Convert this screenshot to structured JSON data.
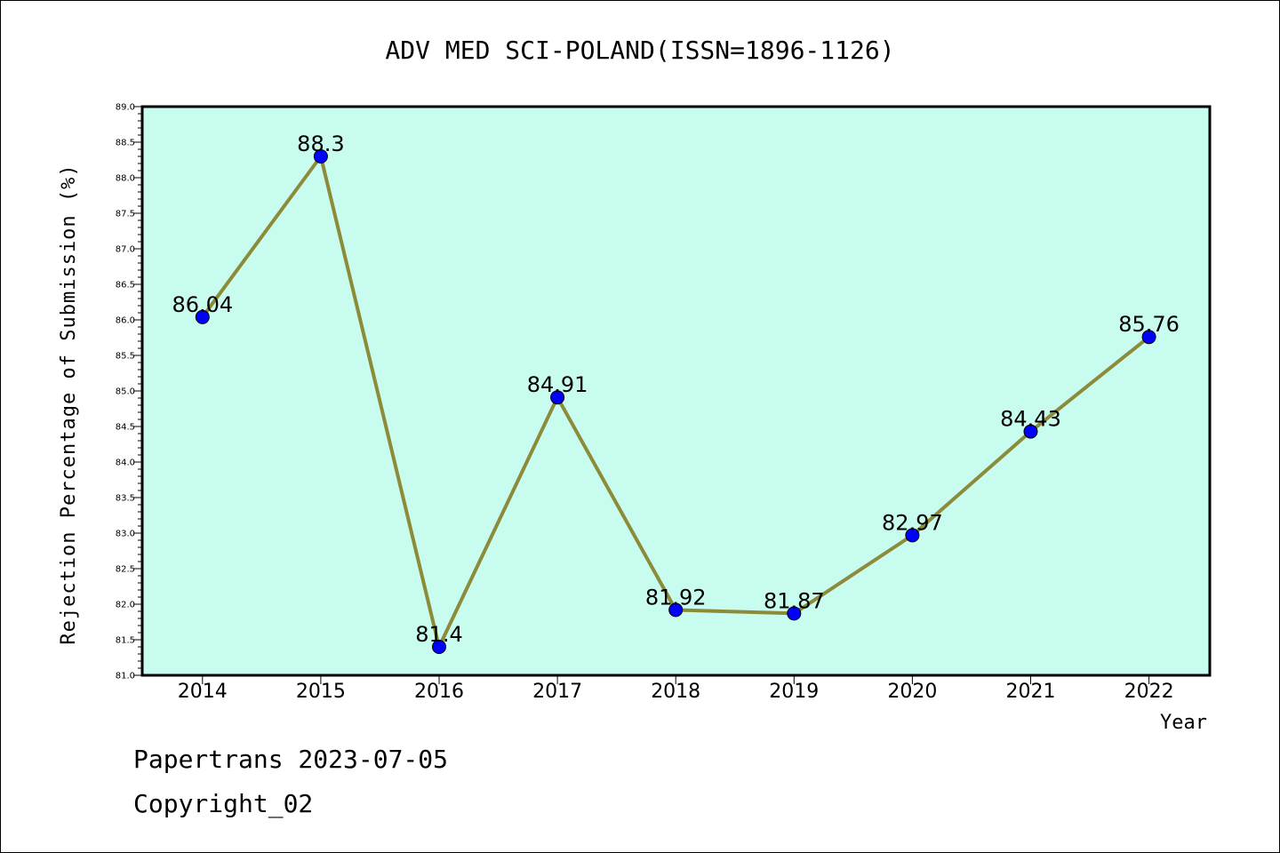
{
  "chart_data": {
    "type": "line",
    "title": "ADV MED SCI-POLAND(ISSN=1896-1126)",
    "xlabel": "Year",
    "ylabel": "Rejection Percentage of Submission (%)",
    "categories": [
      "2014",
      "2015",
      "2016",
      "2017",
      "2018",
      "2019",
      "2020",
      "2021",
      "2022"
    ],
    "values": [
      86.04,
      88.3,
      81.4,
      84.91,
      81.92,
      81.87,
      82.97,
      84.43,
      85.76
    ],
    "data_labels": [
      "86.04",
      "88.3",
      "81.4",
      "84.91",
      "81.92",
      "81.87",
      "82.97",
      "84.43",
      "85.76"
    ],
    "ylim": [
      81.0,
      89.0
    ],
    "yticks": [
      "81.0",
      "81.5",
      "82.0",
      "82.5",
      "83.0",
      "83.5",
      "84.0",
      "84.5",
      "85.0",
      "85.5",
      "86.0",
      "86.5",
      "87.0",
      "87.5",
      "88.0",
      "88.5",
      "89.0"
    ],
    "grid": false,
    "colors": {
      "plot_bg": "#c8fcee",
      "line": "#8b8b3a",
      "marker": "#0000ff"
    }
  },
  "footer": {
    "line1": "Papertrans 2023-07-05",
    "line2": "Copyright_02"
  }
}
